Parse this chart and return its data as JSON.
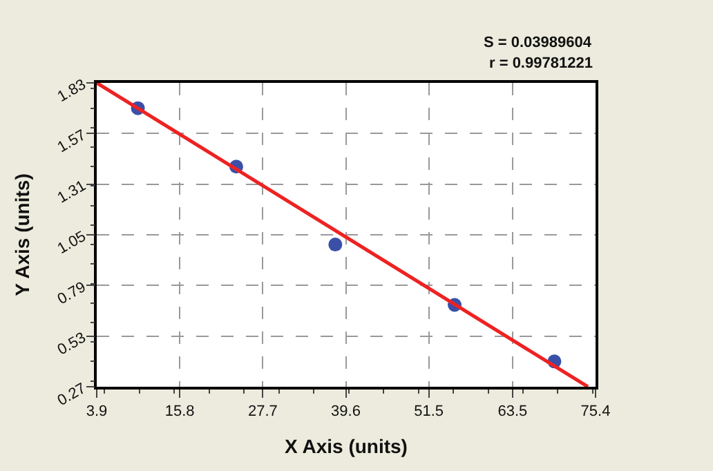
{
  "chart_data": {
    "type": "scatter",
    "xlabel": "X Axis (units)",
    "ylabel": "Y Axis (units)",
    "xlim": [
      3.9,
      75.4
    ],
    "xticks": [
      3.9,
      15.8,
      27.7,
      39.6,
      51.5,
      63.5,
      75.4
    ],
    "ylim": [
      0.27,
      1.83
    ],
    "yticks": [
      0.27,
      0.53,
      0.79,
      1.05,
      1.31,
      1.57,
      1.83
    ],
    "grid": true,
    "marker": "circle",
    "legend": false,
    "series": [
      {
        "color": "#3a50a8",
        "x": [
          9.8,
          23.9,
          38.1,
          55.2,
          69.5
        ],
        "values": [
          1.7,
          1.4,
          1.0,
          0.69,
          0.4
        ]
      },
      {
        "type": "line",
        "marker": "none",
        "color": "#ee2222",
        "x": [
          3.9,
          74.3
        ],
        "values": [
          1.83,
          0.27
        ]
      }
    ],
    "annotations": [
      "S = 0.03989604",
      "r = 0.99781221"
    ]
  }
}
